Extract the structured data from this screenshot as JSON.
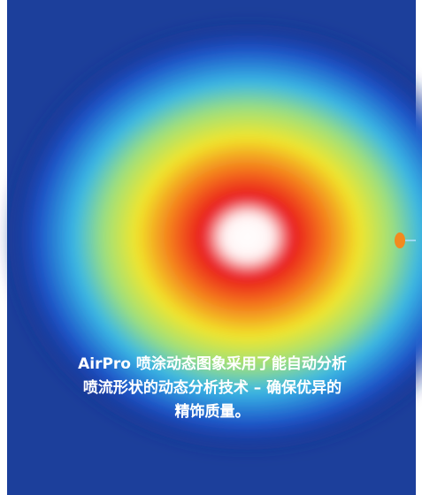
{
  "caption": {
    "lines": [
      "AirPro 喷涂动态图象采用了能自动分析",
      "喷流形状的动态分析技术 – 确保优异的",
      "精饰质量。"
    ]
  }
}
